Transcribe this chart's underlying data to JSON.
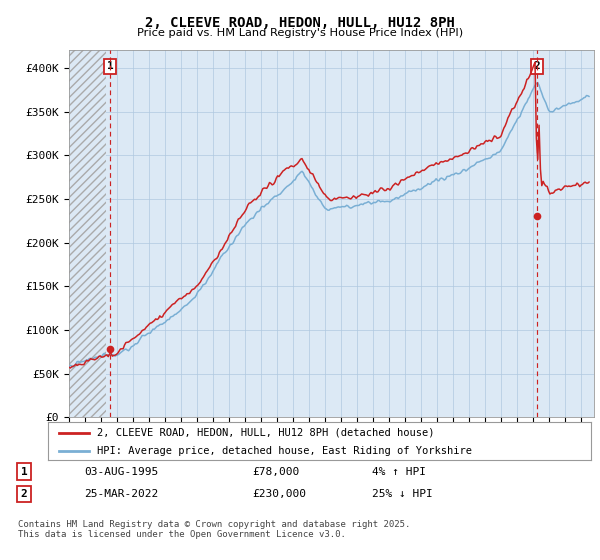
{
  "title": "2, CLEEVE ROAD, HEDON, HULL, HU12 8PH",
  "subtitle": "Price paid vs. HM Land Registry's House Price Index (HPI)",
  "ylim": [
    0,
    420000
  ],
  "yticks": [
    0,
    50000,
    100000,
    150000,
    200000,
    250000,
    300000,
    350000,
    400000
  ],
  "ytick_labels": [
    "£0",
    "£50K",
    "£100K",
    "£150K",
    "£200K",
    "£250K",
    "£300K",
    "£350K",
    "£400K"
  ],
  "x_start_year": 1993,
  "x_end_year": 2025,
  "hpi_color": "#7aafd4",
  "price_color": "#cc2222",
  "plot_bg_color": "#dce9f5",
  "hatch_color": "#c8c8d8",
  "grid_color": "#b0c8e0",
  "legend_entries": [
    "2, CLEEVE ROAD, HEDON, HULL, HU12 8PH (detached house)",
    "HPI: Average price, detached house, East Riding of Yorkshire"
  ],
  "transaction1_date": "03-AUG-1995",
  "transaction1_price": "£78,000",
  "transaction1_pct": "4% ↑ HPI",
  "transaction1_year": 1995.58,
  "transaction1_value": 78000,
  "transaction2_date": "25-MAR-2022",
  "transaction2_price": "£230,000",
  "transaction2_pct": "25% ↓ HPI",
  "transaction2_year": 2022.23,
  "transaction2_value": 230000,
  "footer": "Contains HM Land Registry data © Crown copyright and database right 2025.\nThis data is licensed under the Open Government Licence v3.0."
}
